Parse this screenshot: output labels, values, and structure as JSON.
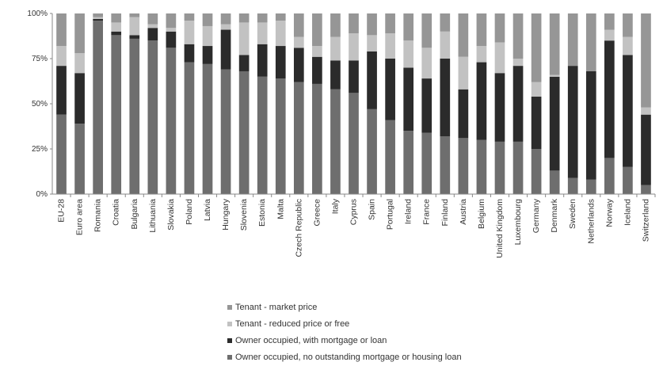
{
  "chart_data": {
    "type": "bar",
    "stacked": true,
    "title": "",
    "xlabel": "",
    "ylabel": "",
    "ylim": [
      0,
      100
    ],
    "yticks": [
      "0%",
      "25%",
      "50%",
      "75%",
      "100%"
    ],
    "grid": false,
    "legend_position": "bottom",
    "categories": [
      "EU-28",
      "Euro area",
      "Romania",
      "Croatia",
      "Bulgaria",
      "Lithuania",
      "Slovakia",
      "Poland",
      "Latvia",
      "Hungary",
      "Slovenia",
      "Estonia",
      "Malta",
      "Czech Republic",
      "Greece",
      "Italy",
      "Cyprus",
      "Spain",
      "Portugal",
      "Ireland",
      "France",
      "Finland",
      "Austria",
      "Belgium",
      "United Kingdom",
      "Luxembourg",
      "Germany",
      "Denmark",
      "Sweden",
      "Netherlands",
      "Norway",
      "Iceland",
      "Switzerland"
    ],
    "series": [
      {
        "name": "Owner occupied, no outstanding mortgage or housing loan",
        "color": "#6e6e6e",
        "values": [
          44,
          39,
          96,
          88,
          86,
          85,
          81,
          73,
          72,
          69,
          68,
          65,
          64,
          62,
          61,
          58,
          56,
          47,
          41,
          35,
          34,
          32,
          31,
          30,
          29,
          29,
          25,
          13,
          9,
          8,
          20,
          15,
          5
        ]
      },
      {
        "name": "Owner occupied, with mortgage or loan",
        "color": "#2b2b2b",
        "values": [
          27,
          28,
          1,
          2,
          2,
          7,
          9,
          10,
          10,
          22,
          9,
          18,
          18,
          19,
          15,
          16,
          18,
          32,
          34,
          35,
          30,
          43,
          27,
          43,
          38,
          42,
          29,
          52,
          62,
          60,
          65,
          62,
          39
        ]
      },
      {
        "name": "Tenant - reduced price or free",
        "color": "#c2c2c2",
        "values": [
          11,
          11,
          1,
          5,
          10,
          2,
          2,
          13,
          11,
          3,
          18,
          12,
          14,
          6,
          6,
          13,
          15,
          9,
          14,
          15,
          17,
          15,
          18,
          9,
          17,
          4,
          8,
          1,
          0,
          0,
          6,
          10,
          4
        ]
      },
      {
        "name": "Tenant - market price",
        "color": "#969696",
        "values": [
          18,
          22,
          2,
          5,
          2,
          6,
          8,
          4,
          7,
          6,
          5,
          5,
          4,
          13,
          18,
          13,
          11,
          12,
          11,
          15,
          19,
          10,
          24,
          18,
          16,
          25,
          38,
          34,
          29,
          32,
          9,
          13,
          52
        ]
      }
    ]
  },
  "legend": {
    "items": [
      {
        "label": "Tenant - market price",
        "color": "#969696"
      },
      {
        "label": "Tenant - reduced price or free",
        "color": "#c2c2c2"
      },
      {
        "label": "Owner occupied, with mortgage or loan",
        "color": "#2b2b2b"
      },
      {
        "label": "Owner occupied, no outstanding mortgage or housing loan",
        "color": "#6e6e6e"
      }
    ]
  }
}
